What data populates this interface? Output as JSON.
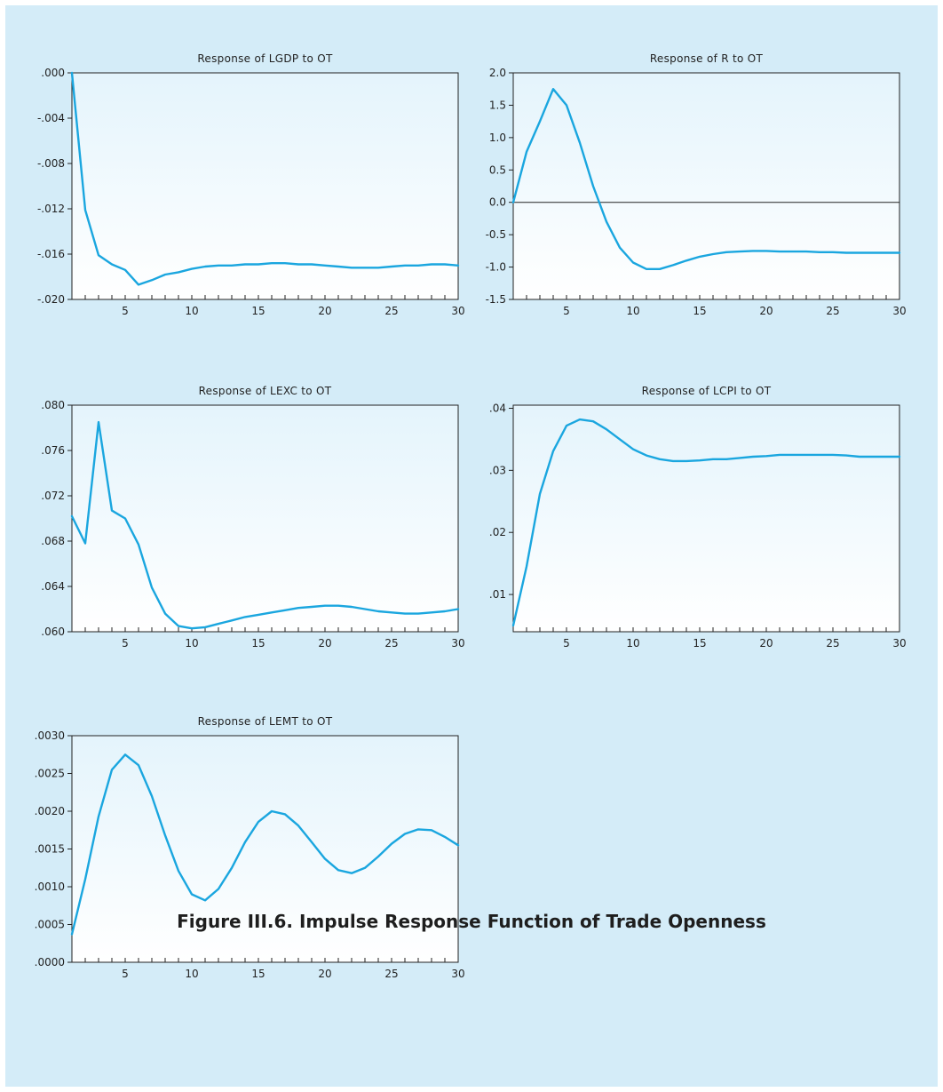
{
  "figure": {
    "caption": "Figure III.6. Impulse Response Function of Trade Openness",
    "line_color": "#1aa6df",
    "background_color": "#d4ecf8"
  },
  "chart_data": [
    {
      "id": "lgdp",
      "type": "line",
      "title": "Response of LGDP to OT",
      "xlabel": "",
      "ylabel": "",
      "xlim": [
        1,
        30
      ],
      "ylim": [
        -0.02,
        0.0
      ],
      "x_ticks": [
        5,
        10,
        15,
        20,
        25,
        30
      ],
      "y_ticks": [
        {
          "v": 0.0,
          "label": ".000"
        },
        {
          "v": -0.004,
          "label": "-.004"
        },
        {
          "v": -0.008,
          "label": "-.008"
        },
        {
          "v": -0.012,
          "label": "-.012"
        },
        {
          "v": -0.016,
          "label": "-.016"
        },
        {
          "v": -0.02,
          "label": "-.020"
        }
      ],
      "zero_line": false,
      "grid": false,
      "series": [
        {
          "x": [
            1,
            2,
            3,
            4,
            5,
            6,
            7,
            8,
            9,
            10,
            11,
            12,
            13,
            14,
            15,
            16,
            17,
            18,
            19,
            20,
            21,
            22,
            23,
            24,
            25,
            26,
            27,
            28,
            29,
            30
          ],
          "values": [
            0.0,
            -0.0121,
            -0.0161,
            -0.0169,
            -0.0174,
            -0.0187,
            -0.0183,
            -0.0178,
            -0.0176,
            -0.0173,
            -0.0171,
            -0.017,
            -0.017,
            -0.0169,
            -0.0169,
            -0.0168,
            -0.0168,
            -0.0169,
            -0.0169,
            -0.017,
            -0.0171,
            -0.0172,
            -0.0172,
            -0.0172,
            -0.0171,
            -0.017,
            -0.017,
            -0.0169,
            -0.0169,
            -0.017
          ]
        }
      ]
    },
    {
      "id": "r",
      "type": "line",
      "title": "Response of R to OT",
      "xlabel": "",
      "ylabel": "",
      "xlim": [
        1,
        30
      ],
      "ylim": [
        -1.5,
        2.0
      ],
      "x_ticks": [
        5,
        10,
        15,
        20,
        25,
        30
      ],
      "y_ticks": [
        {
          "v": 2.0,
          "label": "2.0"
        },
        {
          "v": 1.5,
          "label": "1.5"
        },
        {
          "v": 1.0,
          "label": "1.0"
        },
        {
          "v": 0.5,
          "label": "0.5"
        },
        {
          "v": 0.0,
          "label": "0.0"
        },
        {
          "v": -0.5,
          "label": "-0.5"
        },
        {
          "v": -1.0,
          "label": "-1.0"
        },
        {
          "v": -1.5,
          "label": "-1.5"
        }
      ],
      "zero_line": true,
      "grid": false,
      "series": [
        {
          "x": [
            1,
            2,
            3,
            4,
            5,
            6,
            7,
            8,
            9,
            10,
            11,
            12,
            13,
            14,
            15,
            16,
            17,
            18,
            19,
            20,
            21,
            22,
            23,
            24,
            25,
            26,
            27,
            28,
            29,
            30
          ],
          "values": [
            0.0,
            0.78,
            1.25,
            1.75,
            1.5,
            0.92,
            0.25,
            -0.3,
            -0.7,
            -0.93,
            -1.03,
            -1.03,
            -0.97,
            -0.9,
            -0.84,
            -0.8,
            -0.77,
            -0.76,
            -0.75,
            -0.75,
            -0.76,
            -0.76,
            -0.76,
            -0.77,
            -0.77,
            -0.78,
            -0.78,
            -0.78,
            -0.78,
            -0.78
          ]
        }
      ]
    },
    {
      "id": "lexc",
      "type": "line",
      "title": "Response of LEXC to OT",
      "xlabel": "",
      "ylabel": "",
      "xlim": [
        1,
        30
      ],
      "ylim": [
        0.06,
        0.08
      ],
      "x_ticks": [
        5,
        10,
        15,
        20,
        25,
        30
      ],
      "y_ticks": [
        {
          "v": 0.08,
          "label": ".080"
        },
        {
          "v": 0.076,
          "label": ".076"
        },
        {
          "v": 0.072,
          "label": ".072"
        },
        {
          "v": 0.068,
          "label": ".068"
        },
        {
          "v": 0.064,
          "label": ".064"
        },
        {
          "v": 0.06,
          "label": ".060"
        }
      ],
      "zero_line": false,
      "grid": false,
      "series": [
        {
          "x": [
            1,
            2,
            3,
            4,
            5,
            6,
            7,
            8,
            9,
            10,
            11,
            12,
            13,
            14,
            15,
            16,
            17,
            18,
            19,
            20,
            21,
            22,
            23,
            24,
            25,
            26,
            27,
            28,
            29,
            30
          ],
          "values": [
            0.0702,
            0.0678,
            0.0785,
            0.0707,
            0.07,
            0.0677,
            0.0639,
            0.0616,
            0.0605,
            0.0603,
            0.0604,
            0.0607,
            0.061,
            0.0613,
            0.0615,
            0.0617,
            0.0619,
            0.0621,
            0.0622,
            0.0623,
            0.0623,
            0.0622,
            0.062,
            0.0618,
            0.0617,
            0.0616,
            0.0616,
            0.0617,
            0.0618,
            0.062
          ]
        }
      ]
    },
    {
      "id": "lcpi",
      "type": "line",
      "title": "Response of LCPI to OT",
      "xlabel": "",
      "ylabel": "",
      "xlim": [
        1,
        30
      ],
      "ylim": [
        0.004,
        0.0405
      ],
      "x_ticks": [
        5,
        10,
        15,
        20,
        25,
        30
      ],
      "y_ticks": [
        {
          "v": 0.04,
          "label": ".04"
        },
        {
          "v": 0.03,
          "label": ".03"
        },
        {
          "v": 0.02,
          "label": ".02"
        },
        {
          "v": 0.01,
          "label": ".01"
        }
      ],
      "zero_line": false,
      "grid": false,
      "series": [
        {
          "x": [
            1,
            2,
            3,
            4,
            5,
            6,
            7,
            8,
            9,
            10,
            11,
            12,
            13,
            14,
            15,
            16,
            17,
            18,
            19,
            20,
            21,
            22,
            23,
            24,
            25,
            26,
            27,
            28,
            29,
            30
          ],
          "values": [
            0.005,
            0.0145,
            0.0262,
            0.0331,
            0.0372,
            0.0382,
            0.0379,
            0.0366,
            0.035,
            0.0334,
            0.0324,
            0.0318,
            0.0315,
            0.0315,
            0.0316,
            0.0318,
            0.0318,
            0.032,
            0.0322,
            0.0323,
            0.0325,
            0.0325,
            0.0325,
            0.0325,
            0.0325,
            0.0324,
            0.0322,
            0.0322,
            0.0322,
            0.0322
          ]
        }
      ]
    },
    {
      "id": "lemt",
      "type": "line",
      "title": "Response of LEMT to OT",
      "xlabel": "",
      "ylabel": "",
      "xlim": [
        1,
        30
      ],
      "ylim": [
        0.0,
        0.003
      ],
      "x_ticks": [
        5,
        10,
        15,
        20,
        25,
        30
      ],
      "y_ticks": [
        {
          "v": 0.003,
          "label": ".0030"
        },
        {
          "v": 0.0025,
          "label": ".0025"
        },
        {
          "v": 0.002,
          "label": ".0020"
        },
        {
          "v": 0.0015,
          "label": ".0015"
        },
        {
          "v": 0.001,
          "label": ".0010"
        },
        {
          "v": 0.0005,
          "label": ".0005"
        },
        {
          "v": 0.0,
          "label": ".0000"
        }
      ],
      "zero_line": false,
      "grid": false,
      "series": [
        {
          "x": [
            1,
            2,
            3,
            4,
            5,
            6,
            7,
            8,
            9,
            10,
            11,
            12,
            13,
            14,
            15,
            16,
            17,
            18,
            19,
            20,
            21,
            22,
            23,
            24,
            25,
            26,
            27,
            28,
            29,
            30
          ],
          "values": [
            0.00037,
            0.0011,
            0.00193,
            0.00255,
            0.00275,
            0.00261,
            0.0022,
            0.00168,
            0.00121,
            0.0009,
            0.00082,
            0.00097,
            0.00125,
            0.00159,
            0.00186,
            0.002,
            0.00196,
            0.00181,
            0.00159,
            0.00137,
            0.00122,
            0.00118,
            0.00125,
            0.0014,
            0.00157,
            0.0017,
            0.00176,
            0.00175,
            0.00166,
            0.00155
          ]
        }
      ]
    }
  ]
}
